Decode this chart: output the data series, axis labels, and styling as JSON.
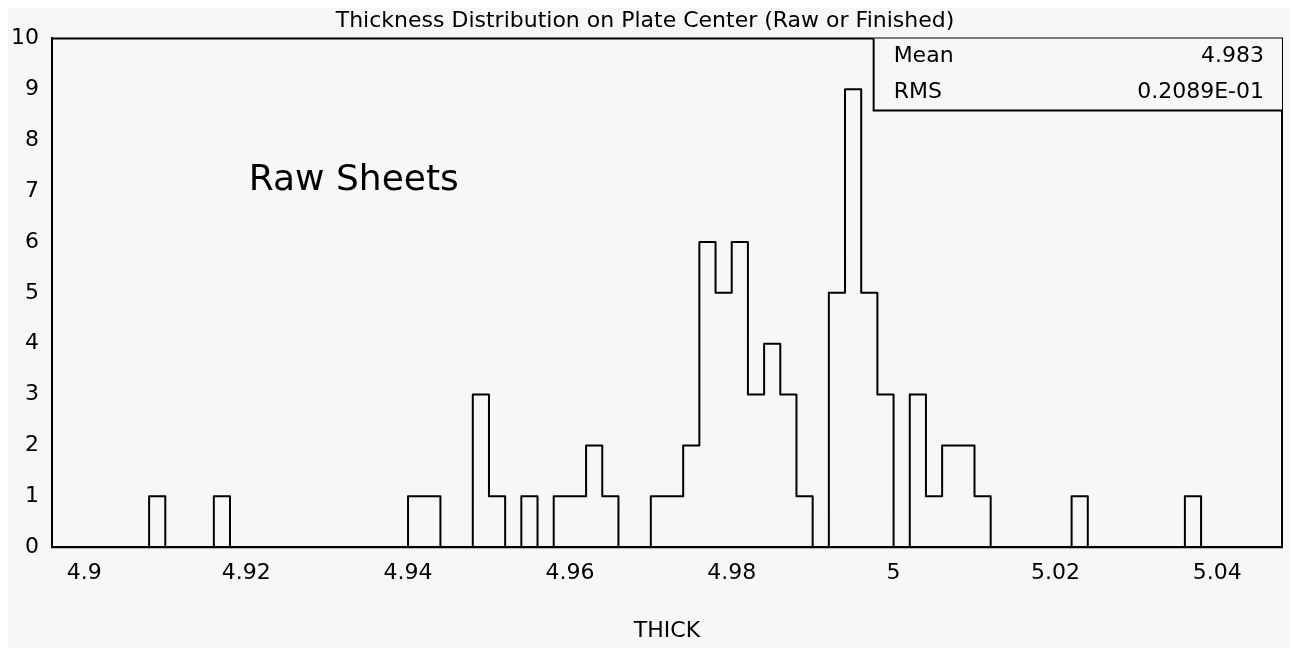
{
  "chart_data": {
    "type": "histogram",
    "title": "Thickness Distribution on Plate Center (Raw or Finished)",
    "xlabel": "THICK",
    "bins": [
      4.896,
      4.898,
      4.9,
      4.902,
      4.904,
      4.906,
      4.908,
      4.91,
      4.912,
      4.914,
      4.916,
      4.918,
      4.92,
      4.922,
      4.924,
      4.926,
      4.928,
      4.93,
      4.932,
      4.934,
      4.936,
      4.938,
      4.94,
      4.942,
      4.944,
      4.946,
      4.948,
      4.95,
      4.952,
      4.954,
      4.956,
      4.958,
      4.96,
      4.962,
      4.964,
      4.966,
      4.968,
      4.97,
      4.972,
      4.974,
      4.976,
      4.978,
      4.98,
      4.982,
      4.984,
      4.986,
      4.988,
      4.99,
      4.992,
      4.994,
      4.996,
      4.998,
      5,
      5.002,
      5.004,
      5.006,
      5.008,
      5.01,
      5.012,
      5.014,
      5.016,
      5.018,
      5.02,
      5.022,
      5.024,
      5.026,
      5.028,
      5.03,
      5.032,
      5.034,
      5.036,
      5.038,
      5.04,
      5.042,
      5.044,
      5.046,
      5.048
    ],
    "values": [
      0,
      0,
      0,
      0,
      0,
      0,
      1,
      0,
      0,
      0,
      1,
      0,
      0,
      0,
      0,
      0,
      0,
      0,
      0,
      0,
      0,
      0,
      1,
      1,
      0,
      0,
      3,
      1,
      0,
      1,
      0,
      1,
      1,
      2,
      1,
      0,
      0,
      1,
      1,
      2,
      6,
      5,
      6,
      3,
      4,
      3,
      1,
      0,
      5,
      9,
      5,
      3,
      0,
      3,
      1,
      2,
      2,
      1,
      0,
      0,
      0,
      0,
      0,
      1,
      0,
      0,
      0,
      0,
      0,
      0,
      1,
      0,
      0,
      0,
      0,
      0
    ],
    "color": "#000000",
    "xlim": [
      4.896,
      5.048
    ],
    "xticks": [
      4.9,
      4.92,
      4.94,
      4.96,
      4.98,
      5,
      5.02,
      5.04
    ],
    "ylim": [
      0,
      10
    ],
    "yticks": [
      0,
      1,
      2,
      3,
      4,
      5,
      6,
      7,
      8,
      9,
      10
    ],
    "grid": false,
    "legend": false,
    "annotations": [
      "Raw Sheets",
      "Mean",
      "4.983",
      "RMS",
      "0.2089E-01"
    ]
  }
}
